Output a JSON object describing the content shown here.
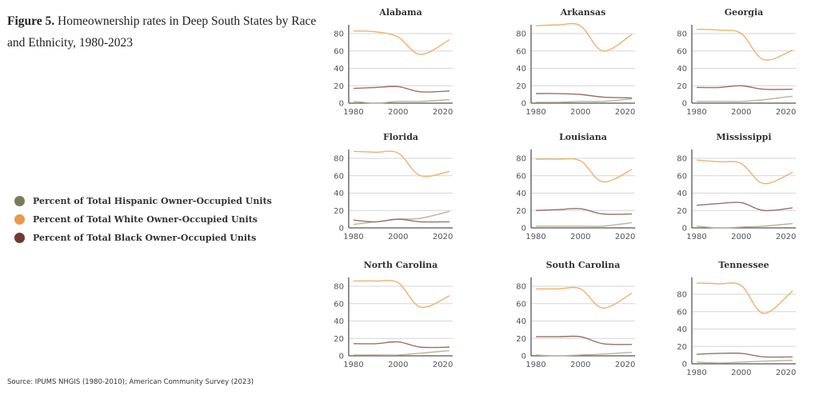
{
  "figure": {
    "label": "Figure 5.",
    "title": "Homeownership rates in Deep South States by Race and Ethnicity, 1980-2023",
    "source": "Source: IPUMS NHGIS (1980-2010); American Community Survey (2023)"
  },
  "legend": [
    {
      "label": "Percent of Total Hispanic Owner-Occupied Units",
      "color": "#7d7a58"
    },
    {
      "label": "Percent of Total White Owner-Occupied Units",
      "color": "#e69a4c"
    },
    {
      "label": "Percent of Total Black Owner-Occupied Units",
      "color": "#6e3a32"
    }
  ],
  "chart_data": {
    "type": "line",
    "title": "Homeownership rates in Deep South States by Race and Ethnicity, 1980-2023",
    "x": [
      1980,
      1990,
      2000,
      2010,
      2023
    ],
    "xticks": [
      1980,
      2000,
      2020
    ],
    "yticks": [
      0,
      20,
      40,
      60,
      80
    ],
    "ylim": [
      0,
      90
    ],
    "grid": true,
    "legend_placement": "left",
    "series_colors": {
      "hispanic": "#b9b49a",
      "white": "#f0b06b",
      "black": "#9a7068"
    },
    "panels": [
      {
        "state": "Alabama",
        "hispanic": [
          2,
          0,
          2,
          2,
          4
        ],
        "white": [
          83,
          82,
          76,
          56,
          73
        ],
        "black": [
          17,
          18,
          19,
          13,
          14
        ]
      },
      {
        "state": "Arkansas",
        "hispanic": [
          1,
          1,
          2,
          2,
          5
        ],
        "white": [
          89,
          90,
          89,
          60,
          79
        ],
        "black": [
          11,
          11,
          10,
          7,
          6
        ]
      },
      {
        "state": "Georgia",
        "hispanic": [
          2,
          2,
          2,
          4,
          8
        ],
        "white": [
          85,
          84,
          80,
          50,
          61
        ],
        "black": [
          18,
          18,
          20,
          16,
          16
        ]
      },
      {
        "state": "Florida",
        "hispanic": [
          4,
          7,
          10,
          11,
          19
        ],
        "white": [
          88,
          87,
          86,
          60,
          65
        ],
        "black": [
          9,
          7,
          10,
          7,
          7
        ]
      },
      {
        "state": "Louisiana",
        "hispanic": [
          2,
          2,
          2,
          2,
          6
        ],
        "white": [
          79,
          79,
          77,
          53,
          67
        ],
        "black": [
          20,
          21,
          22,
          16,
          16
        ]
      },
      {
        "state": "Mississippi",
        "hispanic": [
          2,
          0,
          1,
          2,
          5
        ],
        "white": [
          78,
          76,
          74,
          51,
          64
        ],
        "black": [
          26,
          28,
          29,
          20,
          23
        ]
      },
      {
        "state": "North Carolina",
        "hispanic": [
          1,
          1,
          1,
          3,
          6
        ],
        "white": [
          86,
          86,
          84,
          56,
          69
        ],
        "black": [
          14,
          14,
          16,
          10,
          10
        ]
      },
      {
        "state": "South Carolina",
        "hispanic": [
          1,
          0,
          1,
          2,
          4
        ],
        "white": [
          77,
          77,
          77,
          55,
          72
        ],
        "black": [
          22,
          22,
          22,
          14,
          13
        ]
      },
      {
        "state": "Tennessee",
        "hispanic": [
          2,
          1,
          2,
          3,
          4
        ],
        "white": [
          93,
          92,
          90,
          58,
          84
        ],
        "black": [
          11,
          12,
          12,
          8,
          8
        ]
      }
    ]
  }
}
